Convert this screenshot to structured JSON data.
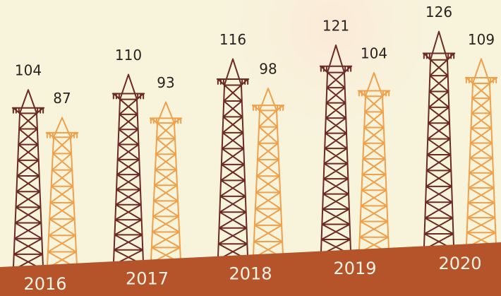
{
  "chart_data": {
    "type": "pictogram",
    "categories": [
      "2016",
      "2017",
      "2018",
      "2019",
      "2020"
    ],
    "series": [
      {
        "color": "#6b2a22",
        "values": [
          104,
          110,
          116,
          121,
          126
        ]
      },
      {
        "color": "#f0a04a",
        "values": [
          87,
          93,
          98,
          104,
          109
        ]
      }
    ]
  }
}
